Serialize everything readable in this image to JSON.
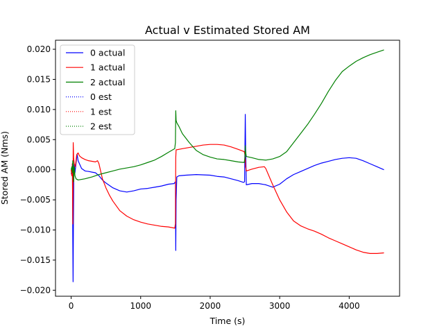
{
  "chart_data": {
    "type": "line",
    "title": "Actual v Estimated Stored AM",
    "xlabel": "Time (s)",
    "ylabel": "Stored AM (Nms)",
    "xlim": [
      -225,
      4725
    ],
    "ylim": [
      -0.021,
      0.0215
    ],
    "x_ticks": [
      0,
      1000,
      2000,
      3000,
      4000
    ],
    "x_tick_labels": [
      "0",
      "1000",
      "2000",
      "3000",
      "4000"
    ],
    "y_ticks": [
      -0.02,
      -0.015,
      -0.01,
      -0.005,
      0.0,
      0.005,
      0.01,
      0.015,
      0.02
    ],
    "y_tick_labels": [
      "−0.020",
      "−0.015",
      "−0.010",
      "−0.005",
      "0.000",
      "0.005",
      "0.010",
      "0.015",
      "0.020"
    ],
    "grid": false,
    "legend_position": "top-left",
    "series": [
      {
        "name": "0 actual",
        "color": "#0000ff",
        "style": "solid",
        "points": [
          [
            0,
            -0.0005
          ],
          [
            12,
            -0.001
          ],
          [
            18,
            0.001
          ],
          [
            24,
            -0.012
          ],
          [
            28,
            -0.0186
          ],
          [
            32,
            -0.01
          ],
          [
            38,
            -0.001
          ],
          [
            45,
            0.001
          ],
          [
            55,
            -0.0005
          ],
          [
            70,
            0.001
          ],
          [
            85,
            0.0026
          ],
          [
            100,
            0.0015
          ],
          [
            150,
            0.0002
          ],
          [
            200,
            -0.0002
          ],
          [
            260,
            -0.0003
          ],
          [
            300,
            -0.0004
          ],
          [
            350,
            -0.0005
          ],
          [
            400,
            -0.001
          ],
          [
            450,
            -0.0017
          ],
          [
            500,
            -0.0022
          ],
          [
            600,
            -0.003
          ],
          [
            700,
            -0.0035
          ],
          [
            800,
            -0.0037
          ],
          [
            900,
            -0.0035
          ],
          [
            1000,
            -0.0032
          ],
          [
            1100,
            -0.0031
          ],
          [
            1200,
            -0.0029
          ],
          [
            1300,
            -0.0027
          ],
          [
            1400,
            -0.0024
          ],
          [
            1480,
            -0.0023
          ],
          [
            1500,
            -0.002
          ],
          [
            1505,
            -0.0134
          ],
          [
            1510,
            -0.005
          ],
          [
            1520,
            -0.0012
          ],
          [
            1550,
            -0.001
          ],
          [
            1650,
            -0.0009
          ],
          [
            1800,
            -0.0008
          ],
          [
            2000,
            -0.0009
          ],
          [
            2100,
            -0.0011
          ],
          [
            2200,
            -0.0012
          ],
          [
            2300,
            -0.0015
          ],
          [
            2400,
            -0.0018
          ],
          [
            2480,
            -0.0021
          ],
          [
            2495,
            -0.002
          ],
          [
            2505,
            0.0092
          ],
          [
            2510,
            0.004
          ],
          [
            2520,
            -0.0025
          ],
          [
            2600,
            -0.0023
          ],
          [
            2700,
            -0.0023
          ],
          [
            2800,
            -0.0025
          ],
          [
            2900,
            -0.0029
          ],
          [
            3000,
            -0.0024
          ],
          [
            3100,
            -0.0015
          ],
          [
            3200,
            -0.0008
          ],
          [
            3300,
            -0.0003
          ],
          [
            3400,
            0.0002
          ],
          [
            3500,
            0.0007
          ],
          [
            3600,
            0.0011
          ],
          [
            3700,
            0.0014
          ],
          [
            3800,
            0.0017
          ],
          [
            3900,
            0.0019
          ],
          [
            4000,
            0.002
          ],
          [
            4100,
            0.0019
          ],
          [
            4200,
            0.0015
          ],
          [
            4300,
            0.001
          ],
          [
            4400,
            0.0005
          ],
          [
            4500,
            0.0
          ]
        ]
      },
      {
        "name": "1 actual",
        "color": "#ff0000",
        "style": "solid",
        "points": [
          [
            0,
            0.0
          ],
          [
            10,
            -0.001
          ],
          [
            18,
            0.001
          ],
          [
            24,
            -0.009
          ],
          [
            30,
            0.0045
          ],
          [
            36,
            0.002
          ],
          [
            45,
            0.001
          ],
          [
            60,
            0.0005
          ],
          [
            80,
            0.0025
          ],
          [
            100,
            0.0028
          ],
          [
            120,
            0.0023
          ],
          [
            150,
            0.002
          ],
          [
            200,
            0.0017
          ],
          [
            250,
            0.0015
          ],
          [
            300,
            0.0014
          ],
          [
            350,
            0.0013
          ],
          [
            380,
            0.0015
          ],
          [
            400,
            0.001
          ],
          [
            450,
            -0.0015
          ],
          [
            500,
            -0.003
          ],
          [
            550,
            -0.0042
          ],
          [
            600,
            -0.0052
          ],
          [
            700,
            -0.0068
          ],
          [
            800,
            -0.0077
          ],
          [
            900,
            -0.0083
          ],
          [
            1000,
            -0.0087
          ],
          [
            1100,
            -0.009
          ],
          [
            1200,
            -0.0092
          ],
          [
            1300,
            -0.0094
          ],
          [
            1400,
            -0.0095
          ],
          [
            1490,
            -0.0097
          ],
          [
            1500,
            -0.009
          ],
          [
            1505,
            0.002
          ],
          [
            1510,
            0.0033
          ],
          [
            1600,
            0.0035
          ],
          [
            1700,
            0.0037
          ],
          [
            1800,
            0.0039
          ],
          [
            1900,
            0.0041
          ],
          [
            2000,
            0.0042
          ],
          [
            2100,
            0.0042
          ],
          [
            2200,
            0.0041
          ],
          [
            2300,
            0.0038
          ],
          [
            2400,
            0.0034
          ],
          [
            2490,
            0.003
          ],
          [
            2500,
            0.0025
          ],
          [
            2505,
            0.0017
          ],
          [
            2510,
            0.0005
          ],
          [
            2520,
            -0.0002
          ],
          [
            2600,
            0.0001
          ],
          [
            2700,
            0.0004
          ],
          [
            2780,
            0.0005
          ],
          [
            2800,
            0.0002
          ],
          [
            2900,
            -0.0025
          ],
          [
            3000,
            -0.005
          ],
          [
            3100,
            -0.007
          ],
          [
            3200,
            -0.0085
          ],
          [
            3300,
            -0.0093
          ],
          [
            3400,
            -0.0098
          ],
          [
            3500,
            -0.0102
          ],
          [
            3600,
            -0.0107
          ],
          [
            3700,
            -0.0113
          ],
          [
            3800,
            -0.0118
          ],
          [
            3900,
            -0.0123
          ],
          [
            4000,
            -0.0128
          ],
          [
            4100,
            -0.0133
          ],
          [
            4200,
            -0.0137
          ],
          [
            4300,
            -0.0139
          ],
          [
            4400,
            -0.0139
          ],
          [
            4500,
            -0.0138
          ]
        ]
      },
      {
        "name": "2 actual",
        "color": "#008000",
        "style": "solid",
        "points": [
          [
            0,
            0.0
          ],
          [
            10,
            0.0005
          ],
          [
            18,
            -0.0005
          ],
          [
            24,
            0.0015
          ],
          [
            30,
            0.0012
          ],
          [
            36,
            -0.002
          ],
          [
            45,
            0.0005
          ],
          [
            55,
            -0.001
          ],
          [
            70,
            -0.0015
          ],
          [
            100,
            -0.0017
          ],
          [
            150,
            -0.0016
          ],
          [
            200,
            -0.0015
          ],
          [
            300,
            -0.0012
          ],
          [
            400,
            -0.0008
          ],
          [
            500,
            -0.0005
          ],
          [
            600,
            -0.0002
          ],
          [
            700,
            0.0001
          ],
          [
            800,
            0.0003
          ],
          [
            900,
            0.0005
          ],
          [
            1000,
            0.0008
          ],
          [
            1100,
            0.0012
          ],
          [
            1200,
            0.0016
          ],
          [
            1300,
            0.0022
          ],
          [
            1400,
            0.0029
          ],
          [
            1490,
            0.0035
          ],
          [
            1500,
            0.0045
          ],
          [
            1505,
            0.0098
          ],
          [
            1510,
            0.0082
          ],
          [
            1520,
            0.0078
          ],
          [
            1550,
            0.0072
          ],
          [
            1600,
            0.006
          ],
          [
            1700,
            0.0045
          ],
          [
            1800,
            0.0032
          ],
          [
            1900,
            0.0025
          ],
          [
            2000,
            0.0021
          ],
          [
            2100,
            0.0018
          ],
          [
            2200,
            0.0017
          ],
          [
            2300,
            0.0015
          ],
          [
            2400,
            0.0013
          ],
          [
            2490,
            0.0012
          ],
          [
            2500,
            0.002
          ],
          [
            2505,
            0.004
          ],
          [
            2510,
            0.003
          ],
          [
            2520,
            0.0022
          ],
          [
            2600,
            0.002
          ],
          [
            2700,
            0.0017
          ],
          [
            2800,
            0.0016
          ],
          [
            2900,
            0.0018
          ],
          [
            3000,
            0.0022
          ],
          [
            3100,
            0.003
          ],
          [
            3200,
            0.0045
          ],
          [
            3300,
            0.006
          ],
          [
            3400,
            0.0075
          ],
          [
            3500,
            0.0092
          ],
          [
            3600,
            0.011
          ],
          [
            3700,
            0.013
          ],
          [
            3800,
            0.0148
          ],
          [
            3900,
            0.0163
          ],
          [
            4000,
            0.0172
          ],
          [
            4100,
            0.018
          ],
          [
            4200,
            0.0186
          ],
          [
            4300,
            0.0191
          ],
          [
            4400,
            0.0195
          ],
          [
            4500,
            0.0199
          ]
        ]
      },
      {
        "name": "0 est",
        "color": "#0000ff",
        "style": "dotted",
        "points": []
      },
      {
        "name": "1 est",
        "color": "#ff0000",
        "style": "dotted",
        "points": []
      },
      {
        "name": "2 est",
        "color": "#008000",
        "style": "dotted",
        "points": []
      }
    ]
  }
}
